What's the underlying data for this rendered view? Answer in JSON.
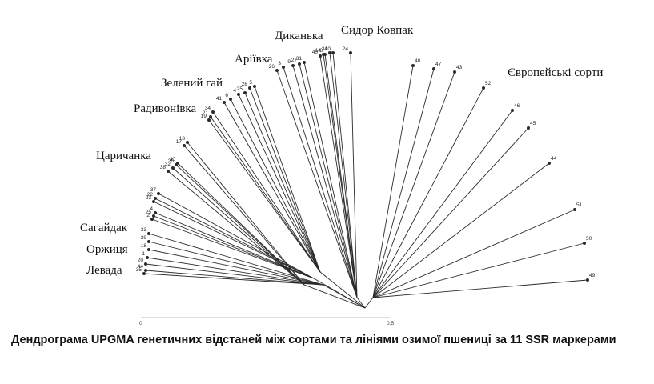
{
  "caption": "Дендрограма  UPGMA генетичних відстаней між сортами та лініями озимої пшениці за 11 SSR маркерами",
  "axis": {
    "min_label": "0",
    "max_label": "0.5"
  },
  "groups": [
    "Диканька",
    "Сидор Ковпак",
    "Аріївка",
    "Європейські сорти",
    "Зелений гай",
    "Радивонівка",
    "Царичанка",
    "Сагайдак",
    "Оржиця",
    "Левада"
  ],
  "leaves": [
    "24",
    "34",
    "14",
    "40",
    "10",
    "8",
    "31",
    "9",
    "27",
    "3",
    "26",
    "48",
    "47",
    "43",
    "52",
    "46",
    "45",
    "44",
    "51",
    "50",
    "49",
    "5",
    "28",
    "25",
    "4",
    "6",
    "41",
    "34",
    "21",
    "19",
    "13",
    "17",
    "30",
    "26",
    "32",
    "38",
    "37",
    "22",
    "23",
    "4",
    "25",
    "2",
    "33",
    "29",
    "18",
    "1",
    "20",
    "44",
    "35"
  ],
  "colors": {
    "line": "#2b2b2b",
    "text": "#111111"
  }
}
